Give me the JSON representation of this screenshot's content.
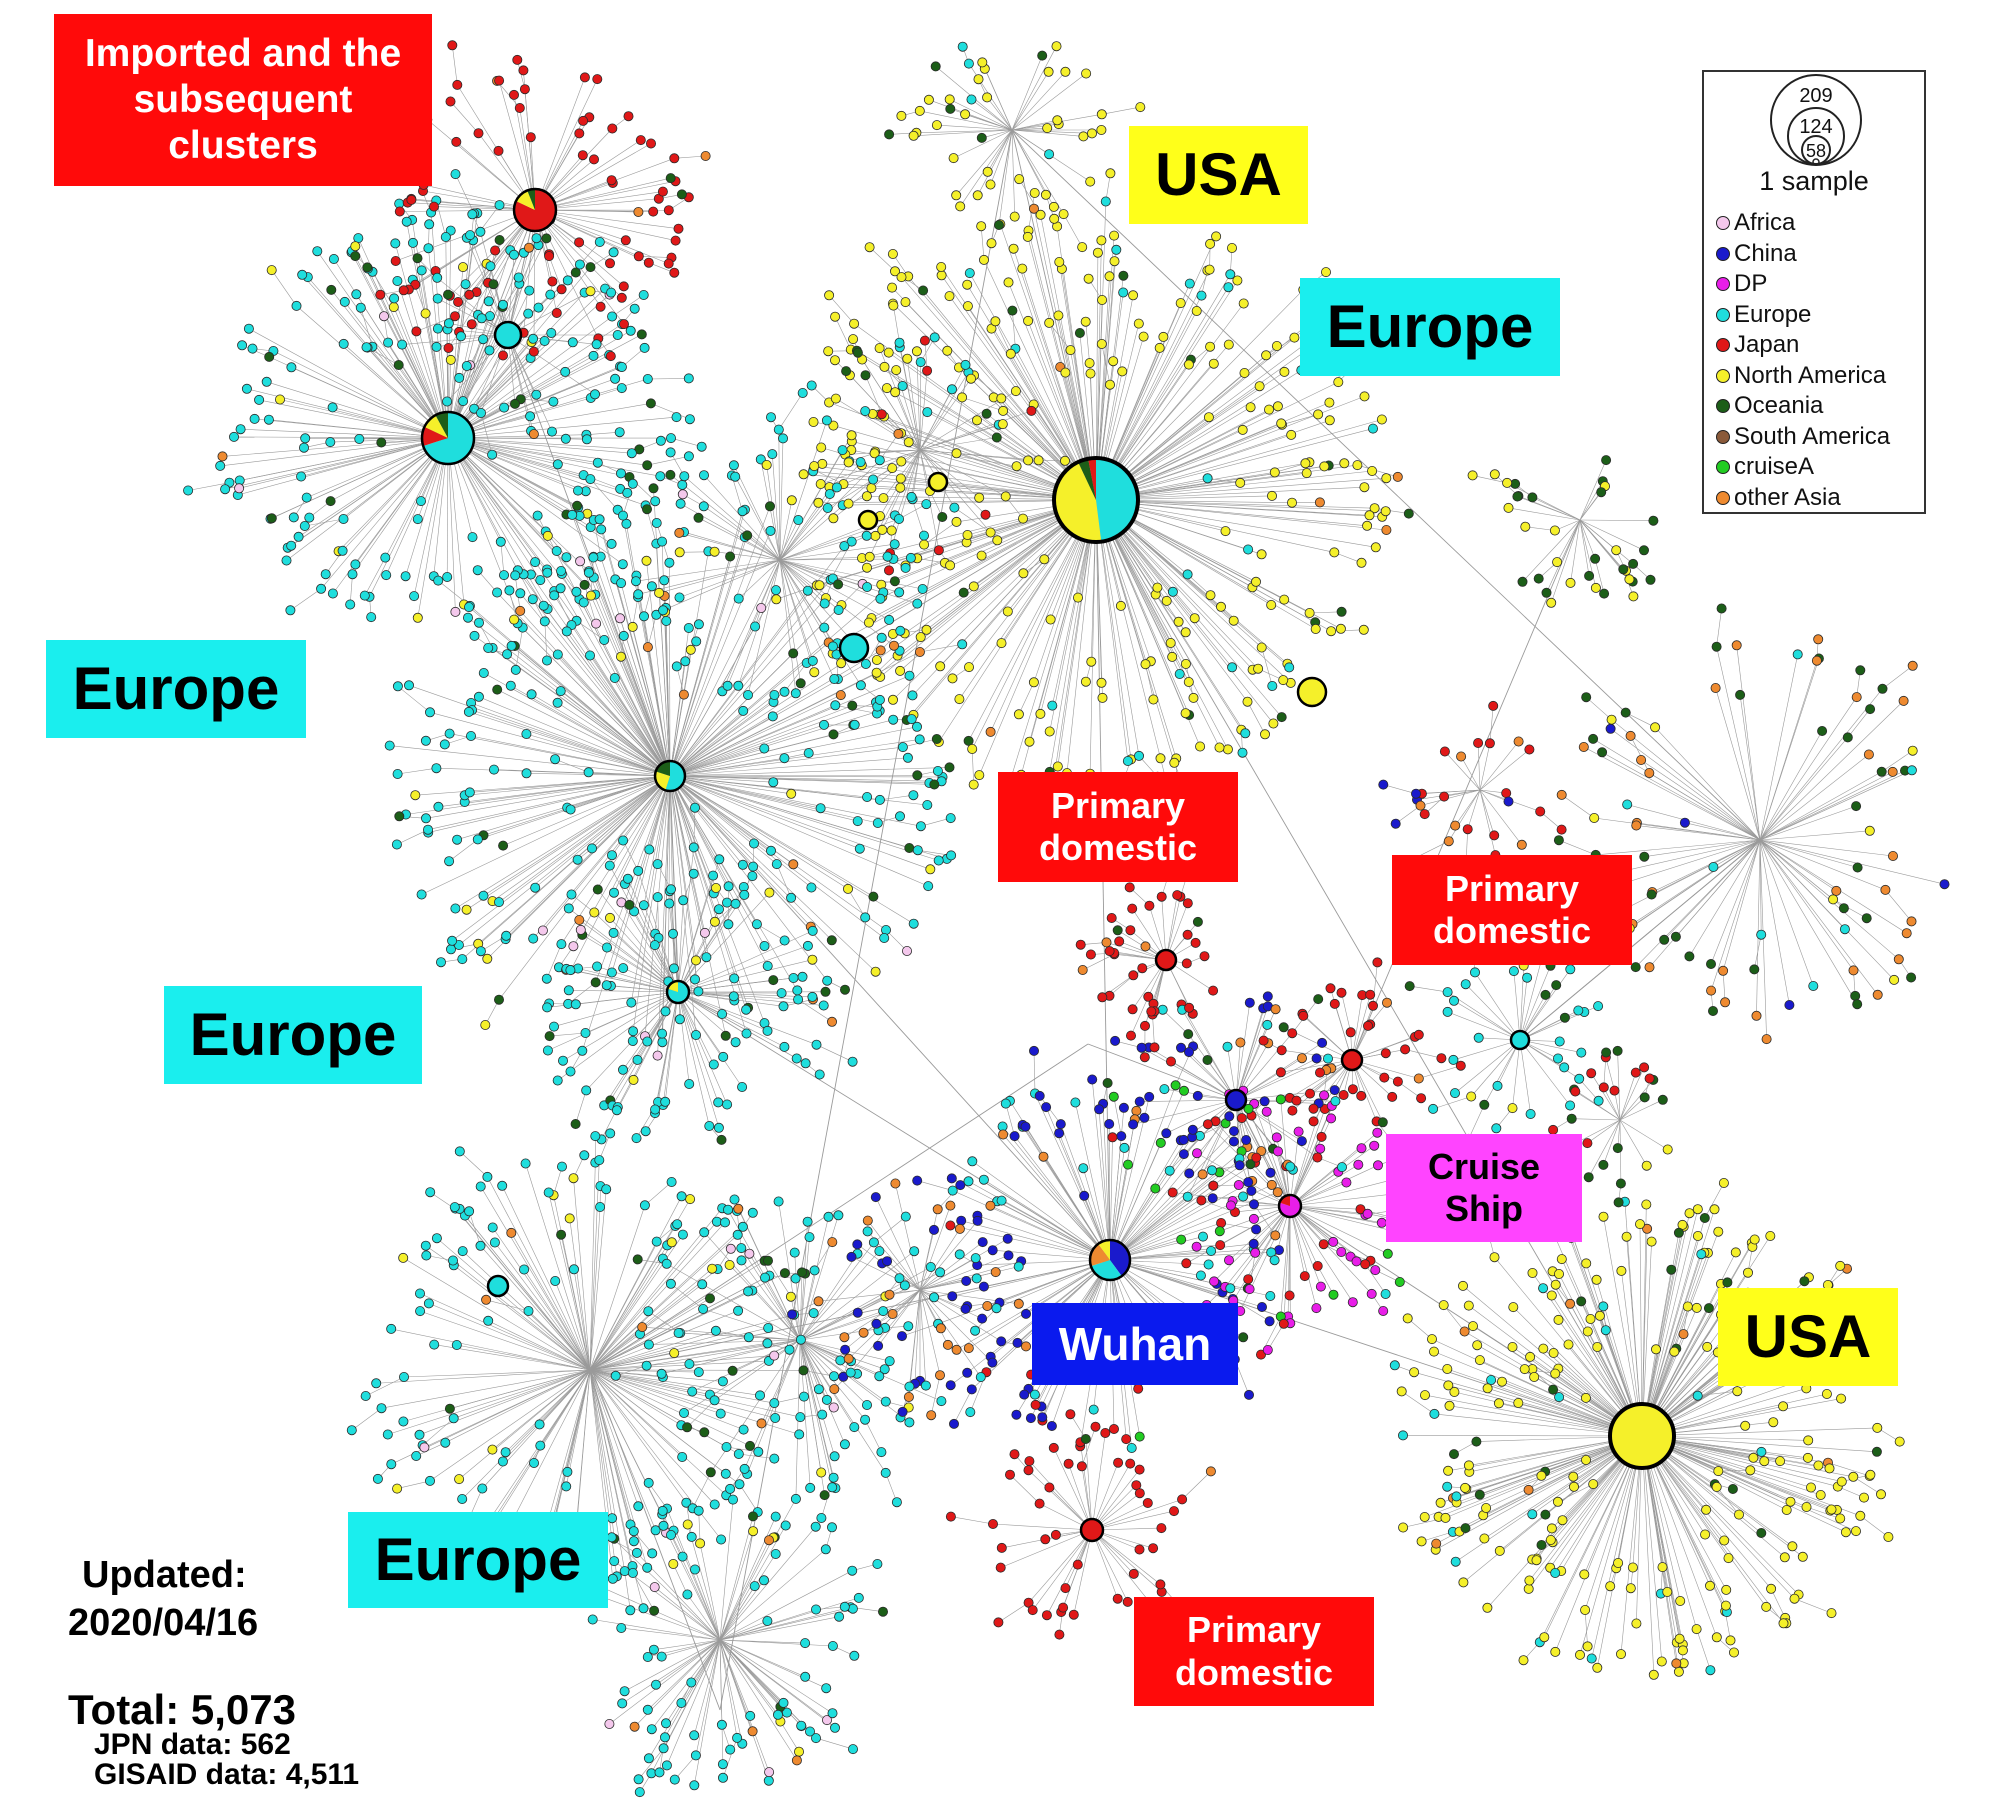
{
  "figure": {
    "colors": {
      "Africa": "#f4c8ec",
      "China": "#1a1acc",
      "DP": "#e81ee8",
      "Europe": "#1fdedd",
      "Japan": "#e01818",
      "North America": "#f5f02a",
      "Oceania": "#1c5e18",
      "South America": "#8a5a3a",
      "cruiseA": "#22cc22",
      "other Asia": "#ee8a30"
    }
  },
  "labels": {
    "imported": {
      "line1": "Imported and the",
      "line2": "subsequent",
      "line3": "clusters",
      "bg": "#ff0a0a"
    },
    "usa_top": {
      "text": "USA",
      "bg": "#ffff1a"
    },
    "europe_top": {
      "text": "Europe",
      "bg": "#1aeeee"
    },
    "europe_left": {
      "text": "Europe",
      "bg": "#1aeeee"
    },
    "europe_mid": {
      "text": "Europe",
      "bg": "#1aeeee"
    },
    "europe_bottom": {
      "text": "Europe",
      "bg": "#1aeeee"
    },
    "primary_1": {
      "line1": "Primary",
      "line2": "domestic",
      "bg": "#ff0a0a"
    },
    "primary_2": {
      "line1": "Primary",
      "line2": "domestic",
      "bg": "#ff0a0a"
    },
    "primary_3": {
      "line1": "Primary",
      "line2": "domestic",
      "bg": "#ff0a0a"
    },
    "cruise": {
      "line1": "Cruise",
      "line2": "Ship",
      "bg": "#ff44ff"
    },
    "wuhan": {
      "text": "Wuhan",
      "bg": "#0a1aee"
    },
    "usa_bottom": {
      "text": "USA",
      "bg": "#ffff1a"
    }
  },
  "legend": {
    "size_values": [
      "209",
      "124",
      "58",
      "1"
    ],
    "sample_caption": "1 sample",
    "items": [
      {
        "label": "Africa",
        "color": "#f4c8ec"
      },
      {
        "label": "China",
        "color": "#1a1acc"
      },
      {
        "label": "DP",
        "color": "#e81ee8"
      },
      {
        "label": "Europe",
        "color": "#1fdedd"
      },
      {
        "label": "Japan",
        "color": "#e01818"
      },
      {
        "label": "North America",
        "color": "#f5f02a"
      },
      {
        "label": "Oceania",
        "color": "#1c5e18"
      },
      {
        "label": "South America",
        "color": "#8a5a3a"
      },
      {
        "label": "cruiseA",
        "color": "#22cc22"
      },
      {
        "label": "other Asia",
        "color": "#ee8a30"
      }
    ]
  },
  "footer": {
    "updated_label": "Updated:",
    "updated_date": "2020/04/16",
    "total": "Total: 5,073",
    "jpn": "JPN data: 562",
    "gisaid": "GISAID data: 4,511"
  }
}
